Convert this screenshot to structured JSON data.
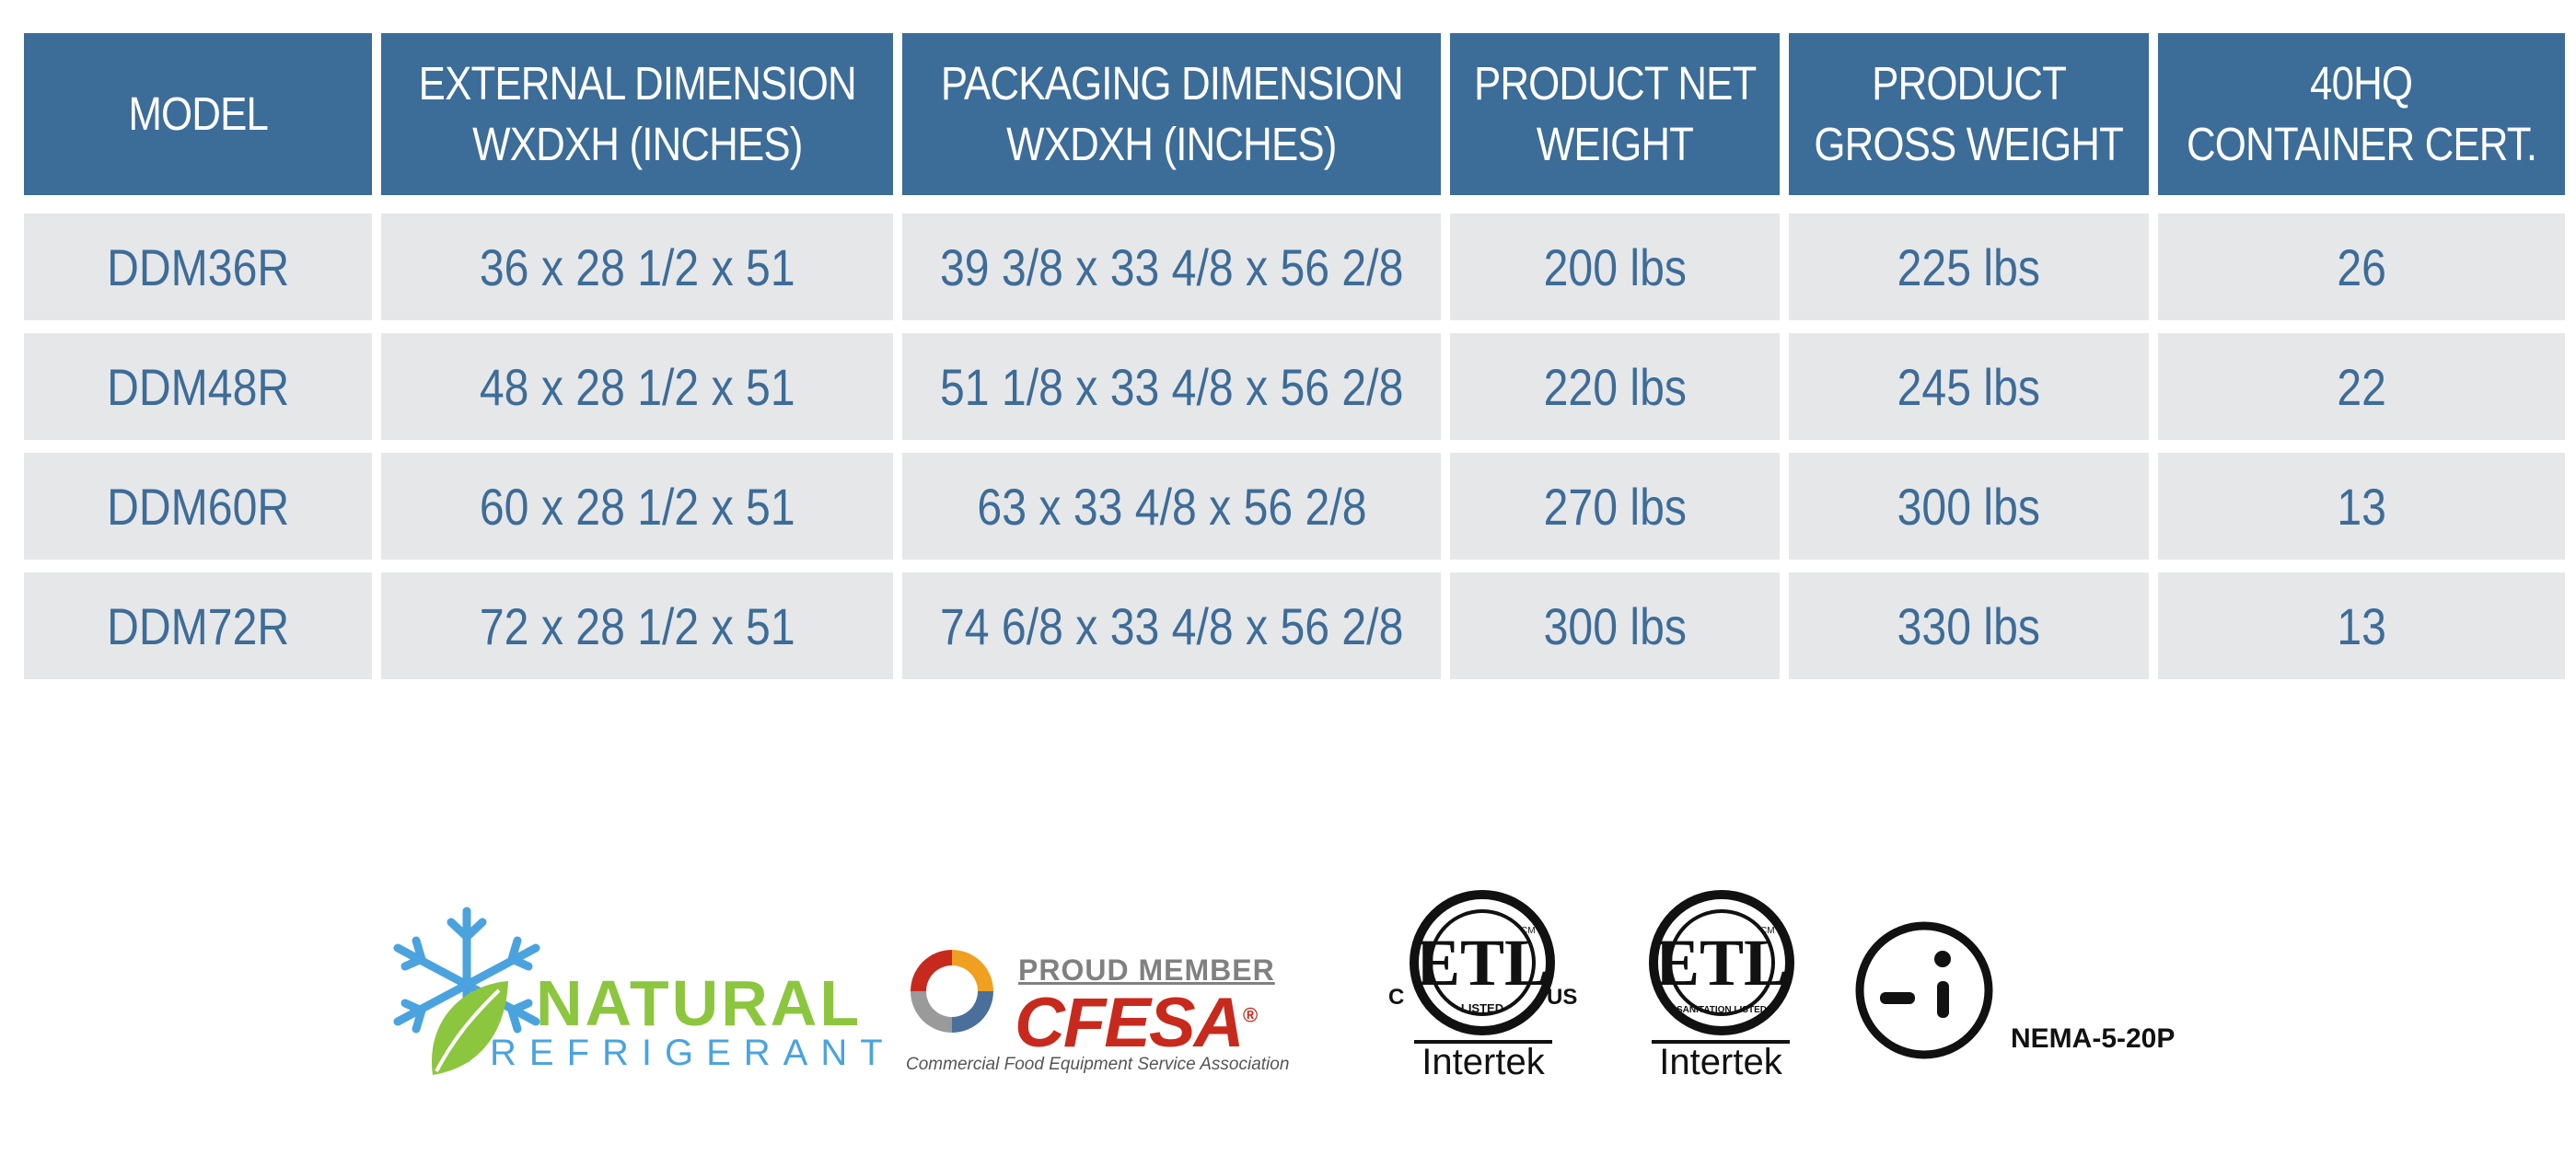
{
  "table": {
    "headers": [
      [
        "MODEL"
      ],
      [
        "EXTERNAL DIMENSION",
        "WXDXH (INCHES)"
      ],
      [
        "PACKAGING DIMENSION",
        "WXDXH (INCHES)"
      ],
      [
        "PRODUCT NET",
        "WEIGHT"
      ],
      [
        "PRODUCT",
        "GROSS WEIGHT"
      ],
      [
        "40HQ",
        "CONTAINER CERT."
      ]
    ],
    "rows": [
      [
        "DDM36R",
        "36 x 28 1/2 x 51",
        "39 3/8 x 33 4/8 x 56 2/8",
        "200 lbs",
        "225 lbs",
        "26"
      ],
      [
        "DDM48R",
        "48 x 28 1/2 x 51",
        "51 1/8 x 33 4/8 x 56 2/8",
        "220 lbs",
        "245 lbs",
        "22"
      ],
      [
        "DDM60R",
        "60 x 28 1/2 x 51",
        "63 x 33 4/8 x 56 2/8",
        "270 lbs",
        "300 lbs",
        "13"
      ],
      [
        "DDM72R",
        "72 x 28 1/2 x 51",
        "74 6/8 x 33 4/8 x 56 2/8",
        "300 lbs",
        "330 lbs",
        "13"
      ]
    ]
  },
  "logos": {
    "natural_refrigerant": {
      "line1": "NATURAL",
      "line2": "REFRIGERANT",
      "icon": "snowflake-leaf-icon"
    },
    "cfesa": {
      "top": "PROUD MEMBER",
      "main": "CFESA",
      "sub": "Commercial Food Equipment Service Association",
      "registered": "®"
    },
    "etl_listed": {
      "mark": "ETL",
      "ring_text": "LISTED",
      "left": "C",
      "right": "US",
      "cm": "CM",
      "brand": "Intertek"
    },
    "etl_sanitation": {
      "mark": "ETL",
      "ring_text": "SANITATION LISTED",
      "cm": "CM",
      "brand": "Intertek"
    },
    "nema": {
      "label": "NEMA-5-20P",
      "icon": "nema-plug-icon"
    }
  },
  "colors": {
    "header_bg": "#3c6c98",
    "header_text": "#ffffff",
    "cell_bg": "#e6e7e9",
    "cell_text": "#3d6c98",
    "nr_green": "#8cc63f",
    "nr_blue": "#4aa3df",
    "cfesa_red": "#c72a1c"
  }
}
